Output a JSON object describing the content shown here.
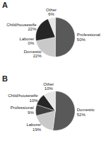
{
  "chart_data": [
    {
      "type": "pie",
      "title": "A",
      "categories": [
        "Professional",
        "Domestic",
        "Laborer",
        "Child/housewife",
        "Other"
      ],
      "values": [
        50,
        22,
        0,
        22,
        6
      ],
      "value_labels": [
        "50%",
        "22%",
        "0%",
        "22%",
        "6%"
      ],
      "colors": [
        "#595959",
        "#c9c9c9",
        "#404040",
        "#262626",
        "#e6e6e6"
      ],
      "data_labels": true
    },
    {
      "type": "pie",
      "title": "B",
      "categories": [
        "Domestic",
        "Laborer",
        "Professional",
        "Child/housewife",
        "Other"
      ],
      "values": [
        52,
        19,
        9,
        10,
        10
      ],
      "value_labels": [
        "52%",
        "19%",
        "9%",
        "10%",
        "10%"
      ],
      "colors": [
        "#595959",
        "#c9c9c9",
        "#404040",
        "#262626",
        "#e6e6e6"
      ],
      "data_labels": true
    }
  ]
}
